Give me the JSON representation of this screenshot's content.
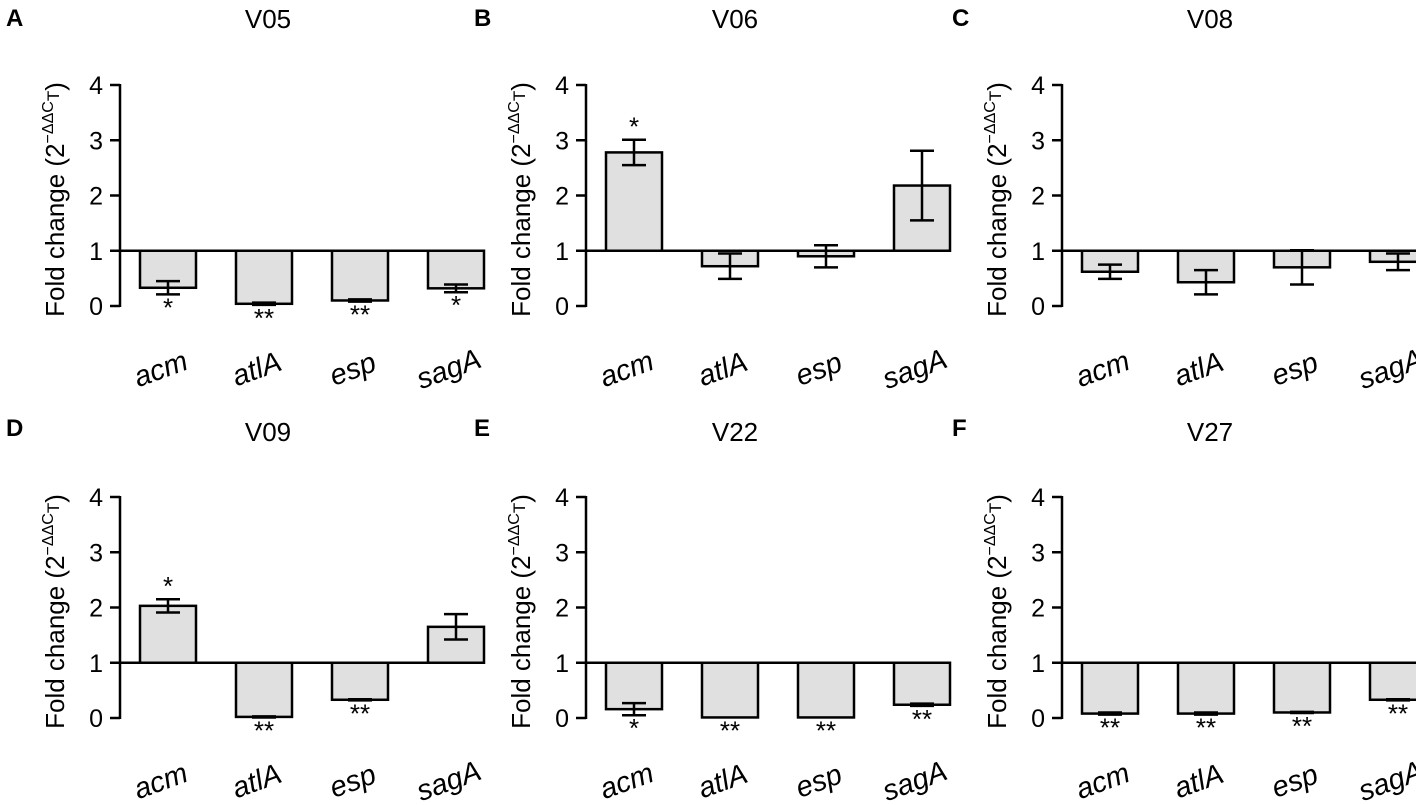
{
  "chart_data": [
    {
      "panel": "A",
      "title": "V05",
      "type": "bar",
      "categories": [
        "acm",
        "atlA",
        "esp",
        "sagA"
      ],
      "values": [
        0.33,
        0.04,
        0.1,
        0.32
      ],
      "error": [
        0.12,
        0.02,
        0.02,
        0.07
      ],
      "significance": [
        "*",
        "**",
        "**",
        "*"
      ],
      "baseline": 1,
      "ylim": [
        0,
        4
      ],
      "yticks": [
        "0",
        "1",
        "2",
        "3",
        "4"
      ],
      "ylabel": {
        "main": "Fold change (2",
        "sup": "−ΔΔC",
        "sub": "T",
        "close": ")"
      }
    },
    {
      "panel": "B",
      "title": "V06",
      "type": "bar",
      "categories": [
        "acm",
        "atlA",
        "esp",
        "sagA"
      ],
      "values": [
        2.78,
        0.72,
        0.9,
        2.18
      ],
      "error": [
        0.23,
        0.23,
        0.2,
        0.63
      ],
      "significance": [
        "*",
        "",
        "",
        ""
      ],
      "baseline": 1,
      "ylim": [
        0,
        4
      ],
      "yticks": [
        "0",
        "1",
        "2",
        "3",
        "4"
      ],
      "ylabel": {
        "main": "Fold change (2",
        "sup": "−ΔΔC",
        "sub": "T",
        "close": ")"
      }
    },
    {
      "panel": "C",
      "title": "V08",
      "type": "bar",
      "categories": [
        "acm",
        "atlA",
        "esp",
        "sagA"
      ],
      "values": [
        0.62,
        0.43,
        0.7,
        0.8
      ],
      "error": [
        0.13,
        0.22,
        0.31,
        0.15
      ],
      "significance": [
        "",
        "",
        "",
        ""
      ],
      "baseline": 1,
      "ylim": [
        0,
        4
      ],
      "yticks": [
        "0",
        "1",
        "2",
        "3",
        "4"
      ],
      "ylabel": {
        "main": "Fold change (2",
        "sup": "−ΔΔC",
        "sub": "T",
        "close": ")"
      }
    },
    {
      "panel": "D",
      "title": "V09",
      "type": "bar",
      "categories": [
        "acm",
        "atlA",
        "esp",
        "sagA"
      ],
      "values": [
        2.03,
        0.02,
        0.33,
        1.65
      ],
      "error": [
        0.12,
        0.01,
        0.01,
        0.23
      ],
      "significance": [
        "*",
        "**",
        "**",
        ""
      ],
      "baseline": 1,
      "ylim": [
        0,
        4
      ],
      "yticks": [
        "0",
        "1",
        "2",
        "3",
        "4"
      ],
      "ylabel": {
        "main": "Fold change (2",
        "sup": "−ΔΔC",
        "sub": "T",
        "close": ")"
      }
    },
    {
      "panel": "E",
      "title": "V22",
      "type": "bar",
      "categories": [
        "acm",
        "atlA",
        "esp",
        "sagA"
      ],
      "values": [
        0.16,
        0.01,
        0.01,
        0.24
      ],
      "error": [
        0.11,
        0.0,
        0.0,
        0.02
      ],
      "significance": [
        "*",
        "**",
        "**",
        "**"
      ],
      "baseline": 1,
      "ylim": [
        0,
        4
      ],
      "yticks": [
        "0",
        "1",
        "2",
        "3",
        "4"
      ],
      "ylabel": {
        "main": "Fold change (2",
        "sup": "−ΔΔC",
        "sub": "T",
        "close": ")"
      }
    },
    {
      "panel": "F",
      "title": "V27",
      "type": "bar",
      "categories": [
        "acm",
        "atlA",
        "esp",
        "sagA"
      ],
      "values": [
        0.08,
        0.08,
        0.1,
        0.33
      ],
      "error": [
        0.02,
        0.02,
        0.01,
        0.01
      ],
      "significance": [
        "**",
        "**",
        "**",
        "**"
      ],
      "baseline": 1,
      "ylim": [
        0,
        4
      ],
      "yticks": [
        "0",
        "1",
        "2",
        "3",
        "4"
      ],
      "ylabel": {
        "main": "Fold change (2",
        "sup": "−ΔΔC",
        "sub": "T",
        "close": ")"
      }
    }
  ]
}
